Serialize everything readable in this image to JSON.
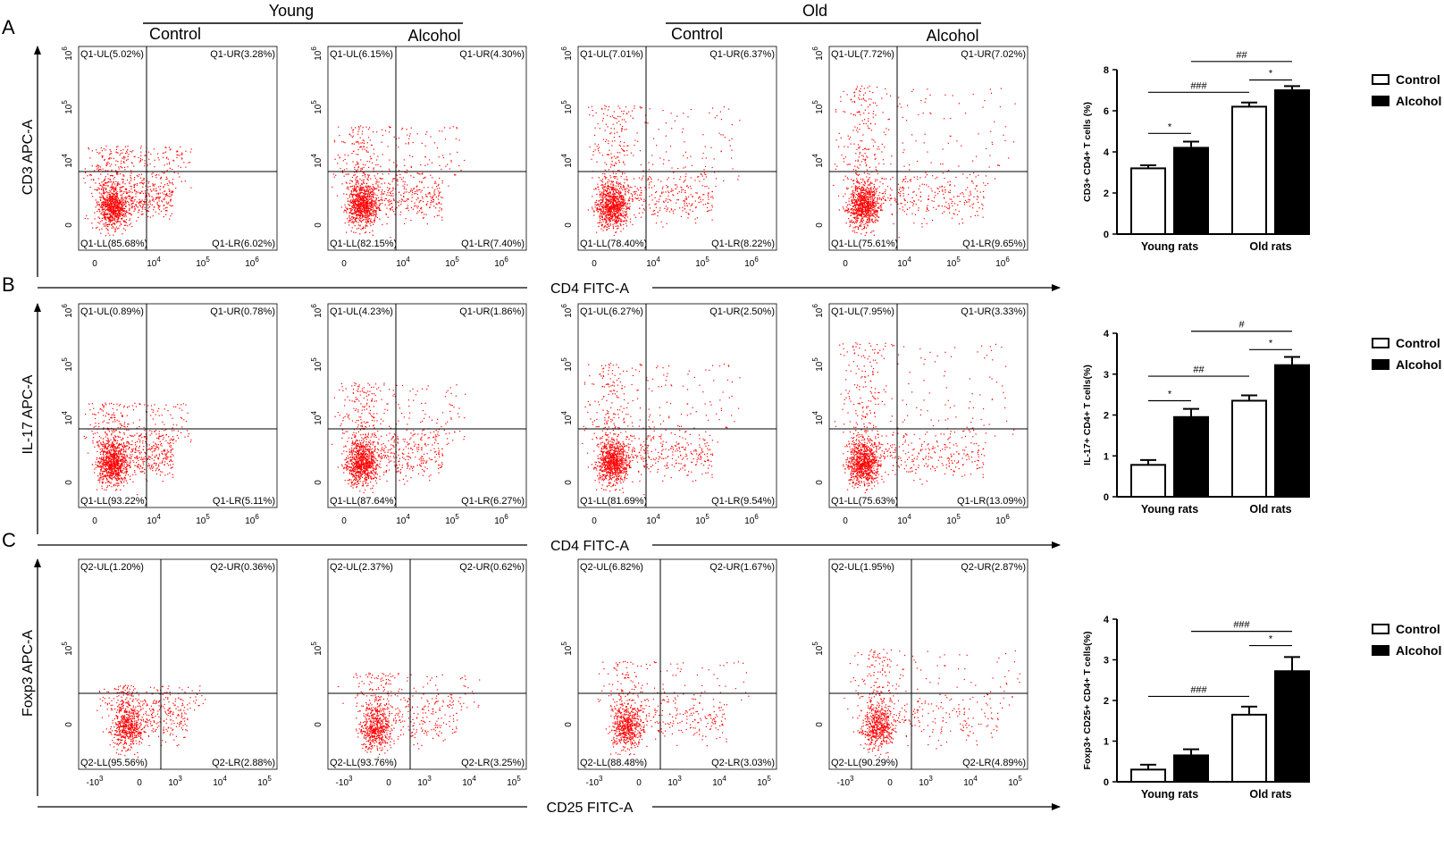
{
  "headers": {
    "young": "Young",
    "old": "Old",
    "columns": [
      "Control",
      "Alcohol",
      "Control",
      "Alcohol"
    ]
  },
  "rows": [
    {
      "letter": "A",
      "y_axis": "CD3  APC-A",
      "x_axis": "CD4 FITC-A",
      "x_ticks": [
        "0",
        "10^4",
        "10^5",
        "10^6"
      ],
      "y_ticks": [
        "0",
        "10^4",
        "10^5",
        "10^6"
      ],
      "plots": [
        {
          "UL": "Q1-UL(5.02%)",
          "UR": "Q1-UR(3.28%)",
          "LL": "Q1-LL(85.68%)",
          "LR": "Q1-LR(6.02%)"
        },
        {
          "UL": "Q1-UL(6.15%)",
          "UR": "Q1-UR(4.30%)",
          "LL": "Q1-LL(82.15%)",
          "LR": "Q1-LR(7.40%)"
        },
        {
          "UL": "Q1-UL(7.01%)",
          "UR": "Q1-UR(6.37%)",
          "LL": "Q1-LL(78.40%)",
          "LR": "Q1-LR(8.22%)"
        },
        {
          "UL": "Q1-UL(7.72%)",
          "UR": "Q1-UR(7.02%)",
          "LL": "Q1-LL(75.61%)",
          "LR": "Q1-LR(9.65%)"
        }
      ]
    },
    {
      "letter": "B",
      "y_axis": "IL-17  APC-A",
      "x_axis": "CD4 FITC-A",
      "x_ticks": [
        "0",
        "10^4",
        "10^5",
        "10^6"
      ],
      "y_ticks": [
        "0",
        "10^4",
        "10^5",
        "10^6"
      ],
      "plots": [
        {
          "UL": "Q1-UL(0.89%)",
          "UR": "Q1-UR(0.78%)",
          "LL": "Q1-LL(93.22%)",
          "LR": "Q1-LR(5.11%)"
        },
        {
          "UL": "Q1-UL(4.23%)",
          "UR": "Q1-UR(1.86%)",
          "LL": "Q1-LL(87.64%)",
          "LR": "Q1-LR(6.27%)"
        },
        {
          "UL": "Q1-UL(6.27%)",
          "UR": "Q1-UR(2.50%)",
          "LL": "Q1-LL(81.69%)",
          "LR": "Q1-LR(9.54%)"
        },
        {
          "UL": "Q1-UL(7.95%)",
          "UR": "Q1-UR(3.33%)",
          "LL": "Q1-LL(75.63%)",
          "LR": "Q1-LR(13.09%)"
        }
      ]
    },
    {
      "letter": "C",
      "y_axis": "Foxp3 APC-A",
      "x_axis": "CD25 FITC-A",
      "x_ticks": [
        "-10^3",
        "0",
        "10^3",
        "10^4",
        "10^5"
      ],
      "y_ticks": [
        "0",
        "10^5"
      ],
      "plots": [
        {
          "UL": "Q2-UL(1.20%)",
          "UR": "Q2-UR(0.36%)",
          "LL": "Q2-LL(95.56%)",
          "LR": "Q2-LR(2.88%)"
        },
        {
          "UL": "Q2-UL(2.37%)",
          "UR": "Q2-UR(0.62%)",
          "LL": "Q2-LL(93.76%)",
          "LR": "Q2-LR(3.25%)"
        },
        {
          "UL": "Q2-UL(6.82%)",
          "UR": "Q2-UR(1.67%)",
          "LL": "Q2-LL(88.48%)",
          "LR": "Q2-LR(3.03%)"
        },
        {
          "UL": "Q2-UL(1.95%)",
          "UR": "Q2-UR(2.87%)",
          "LL": "Q2-LL(90.29%)",
          "LR": "Q2-LR(4.89%)"
        }
      ]
    }
  ],
  "colors": {
    "dots": "#ff0000",
    "control_bar": "#ffffff",
    "alcohol_bar": "#000000",
    "axis": "#000000"
  },
  "chart_data": [
    {
      "type": "bar",
      "panel": "A",
      "ylabel": "CD3+ CD4+ T cells (%)",
      "categories": [
        "Young rats",
        "Old rats"
      ],
      "series": [
        {
          "name": "Control",
          "values": [
            3.2,
            6.2
          ],
          "errors": [
            0.15,
            0.2
          ]
        },
        {
          "name": "Alcohol",
          "values": [
            4.2,
            7.0
          ],
          "errors": [
            0.3,
            0.2
          ]
        }
      ],
      "ylim": [
        0,
        8
      ],
      "yticks": [
        0,
        2,
        4,
        6,
        8
      ],
      "legend": [
        "Control",
        "Alcohol"
      ],
      "legend_position": "right",
      "significance": [
        {
          "label": "*",
          "from": [
            0,
            0
          ],
          "to": [
            0,
            1
          ],
          "y": 4.9
        },
        {
          "label": "###",
          "from": [
            0,
            0
          ],
          "to": [
            1,
            0
          ],
          "y": 6.9
        },
        {
          "label": "*",
          "from": [
            1,
            0
          ],
          "to": [
            1,
            1
          ],
          "y": 7.5
        },
        {
          "label": "##",
          "from": [
            0,
            1
          ],
          "to": [
            1,
            1
          ],
          "y": 8.4
        }
      ]
    },
    {
      "type": "bar",
      "panel": "B",
      "ylabel": "IL-17+ CD4+ T cells(%)",
      "categories": [
        "Young rats",
        "Old rats"
      ],
      "series": [
        {
          "name": "Control",
          "values": [
            0.78,
            2.35
          ],
          "errors": [
            0.12,
            0.13
          ]
        },
        {
          "name": "Alcohol",
          "values": [
            1.95,
            3.22
          ],
          "errors": [
            0.2,
            0.2
          ]
        }
      ],
      "ylim": [
        0,
        4
      ],
      "yticks": [
        0,
        1,
        2,
        3,
        4
      ],
      "legend": [
        "Control",
        "Alcohol"
      ],
      "legend_position": "right",
      "significance": [
        {
          "label": "*",
          "from": [
            0,
            0
          ],
          "to": [
            0,
            1
          ],
          "y": 2.35
        },
        {
          "label": "##",
          "from": [
            0,
            0
          ],
          "to": [
            1,
            0
          ],
          "y": 2.95
        },
        {
          "label": "*",
          "from": [
            1,
            0
          ],
          "to": [
            1,
            1
          ],
          "y": 3.6
        },
        {
          "label": "#",
          "from": [
            0,
            1
          ],
          "to": [
            1,
            1
          ],
          "y": 4.05
        }
      ]
    },
    {
      "type": "bar",
      "panel": "C",
      "ylabel": "Foxp3+ CD25+ CD4+ T cells(%)",
      "categories": [
        "Young rats",
        "Old rats"
      ],
      "series": [
        {
          "name": "Control",
          "values": [
            0.3,
            1.65
          ],
          "errors": [
            0.12,
            0.2
          ]
        },
        {
          "name": "Alcohol",
          "values": [
            0.65,
            2.72
          ],
          "errors": [
            0.15,
            0.35
          ]
        }
      ],
      "ylim": [
        0,
        4
      ],
      "yticks": [
        0,
        1,
        2,
        3,
        4
      ],
      "legend": [
        "Control",
        "Alcohol"
      ],
      "legend_position": "right",
      "significance": [
        {
          "label": "###",
          "from": [
            0,
            0
          ],
          "to": [
            1,
            0
          ],
          "y": 2.1
        },
        {
          "label": "*",
          "from": [
            1,
            0
          ],
          "to": [
            1,
            1
          ],
          "y": 3.35
        },
        {
          "label": "###",
          "from": [
            0,
            1
          ],
          "to": [
            1,
            1
          ],
          "y": 3.7
        }
      ]
    }
  ]
}
